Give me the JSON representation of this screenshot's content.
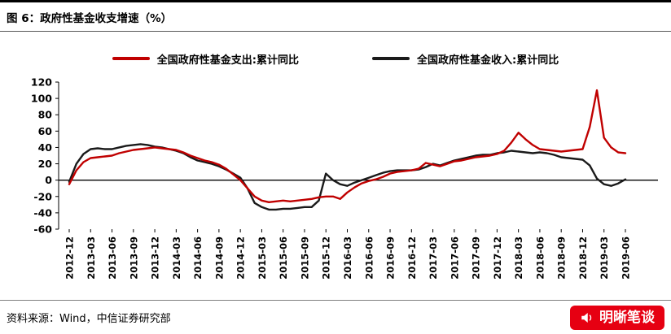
{
  "header": {
    "title": "图 6：政府性基金收支增速（%）"
  },
  "legend": [
    {
      "label": "全国政府性基金支出:累计同比",
      "color": "#c00000"
    },
    {
      "label": "全国政府性基金收入:累计同比",
      "color": "#1a1a1a"
    }
  ],
  "chart_data": {
    "type": "line",
    "title": "政府性基金收支增速（%）",
    "xlabel": "",
    "ylabel": "",
    "ylim": [
      -60,
      120
    ],
    "yticks": [
      120,
      100,
      80,
      60,
      40,
      20,
      0,
      -20,
      -40,
      -60
    ],
    "xtick_every": 3,
    "grid": false,
    "legend_position": "top",
    "x": [
      "2012-12",
      "2013-01",
      "2013-02",
      "2013-03",
      "2013-04",
      "2013-05",
      "2013-06",
      "2013-07",
      "2013-08",
      "2013-09",
      "2013-10",
      "2013-11",
      "2013-12",
      "2014-01",
      "2014-02",
      "2014-03",
      "2014-04",
      "2014-05",
      "2014-06",
      "2014-07",
      "2014-08",
      "2014-09",
      "2014-10",
      "2014-11",
      "2014-12",
      "2015-01",
      "2015-02",
      "2015-03",
      "2015-04",
      "2015-05",
      "2015-06",
      "2015-07",
      "2015-08",
      "2015-09",
      "2015-10",
      "2015-11",
      "2015-12",
      "2016-01",
      "2016-02",
      "2016-03",
      "2016-04",
      "2016-05",
      "2016-06",
      "2016-07",
      "2016-08",
      "2016-09",
      "2016-10",
      "2016-11",
      "2016-12",
      "2017-01",
      "2017-02",
      "2017-03",
      "2017-04",
      "2017-05",
      "2017-06",
      "2017-07",
      "2017-08",
      "2017-09",
      "2017-10",
      "2017-11",
      "2017-12",
      "2018-01",
      "2018-02",
      "2018-03",
      "2018-04",
      "2018-05",
      "2018-06",
      "2018-07",
      "2018-08",
      "2018-09",
      "2018-10",
      "2018-11",
      "2018-12",
      "2019-01",
      "2019-02",
      "2019-03",
      "2019-04",
      "2019-05",
      "2019-06"
    ],
    "series": [
      {
        "name": "全国政府性基金支出:累计同比",
        "color": "#c00000",
        "values": [
          -5,
          12,
          22,
          27,
          28,
          29,
          30,
          33,
          35,
          37,
          38,
          39,
          40,
          39,
          38,
          37,
          34,
          30,
          27,
          24,
          22,
          19,
          14,
          7,
          0,
          -10,
          -20,
          -25,
          -27,
          -26,
          -25,
          -26,
          -25,
          -24,
          -23,
          -21,
          -20,
          -20,
          -23,
          -15,
          -9,
          -4,
          -1,
          1,
          4,
          8,
          10,
          11,
          12,
          14,
          21,
          19,
          17,
          20,
          23,
          24,
          26,
          28,
          29,
          30,
          32,
          36,
          46,
          58,
          50,
          43,
          38,
          37,
          36,
          35,
          36,
          37,
          38,
          65,
          110,
          52,
          40,
          34,
          33
        ]
      },
      {
        "name": "全国政府性基金收入:累计同比",
        "color": "#1a1a1a",
        "values": [
          -2,
          20,
          32,
          38,
          39,
          38,
          38,
          40,
          42,
          43,
          44,
          43,
          41,
          40,
          38,
          36,
          33,
          28,
          24,
          22,
          20,
          17,
          13,
          8,
          3,
          -10,
          -28,
          -33,
          -36,
          -36,
          -35,
          -35,
          -34,
          -33,
          -33,
          -25,
          8,
          0,
          -5,
          -7,
          -3,
          0,
          3,
          6,
          9,
          11,
          12,
          12,
          12,
          13,
          16,
          20,
          18,
          21,
          24,
          26,
          28,
          30,
          31,
          31,
          33,
          34,
          36,
          35,
          34,
          33,
          34,
          33,
          31,
          28,
          27,
          26,
          25,
          18,
          2,
          -5,
          -7,
          -4,
          1
        ]
      }
    ]
  },
  "footer": {
    "source": "资料来源：Wind，中信证券研究部",
    "watermark": {
      "text": "明晰笔谈",
      "icon": "megaphone-icon",
      "bg": "#e60012",
      "fg": "#ffffff"
    }
  }
}
